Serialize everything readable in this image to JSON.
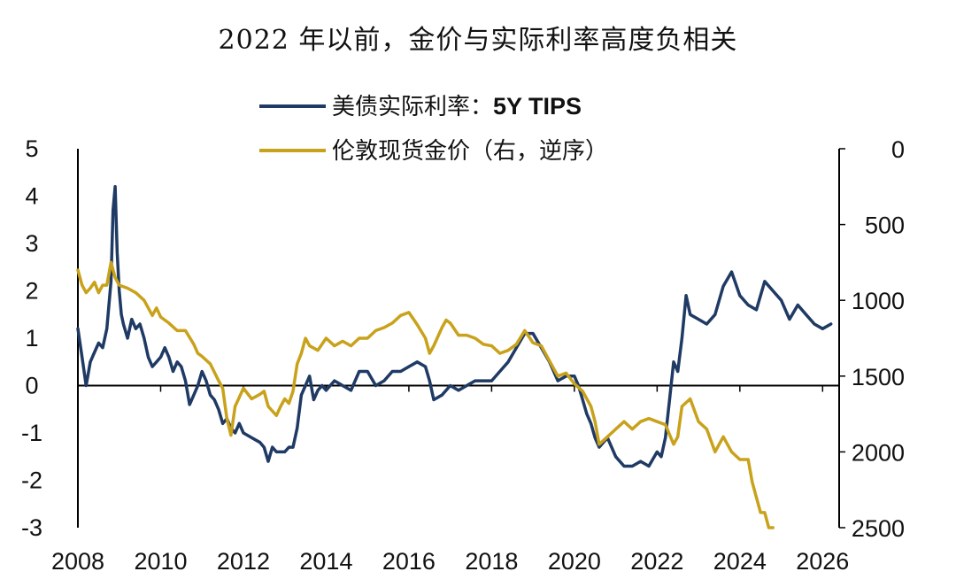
{
  "chart_data": {
    "type": "line",
    "title": "2022 年以前，金价与实际利率高度负相关",
    "colors": {
      "tips": "#1f3a64",
      "gold": "#c9a21b",
      "axis": "#000000"
    },
    "legend": {
      "placement": "top-center",
      "entries": [
        {
          "key": "tips",
          "label": "美债实际利率：",
          "label_bold": "5Y TIPS"
        },
        {
          "key": "gold",
          "label": "伦敦现货金价（右，逆序）"
        }
      ]
    },
    "x_axis": {
      "range": [
        2008,
        2026.4
      ],
      "ticks": [
        "2008",
        "2010",
        "2012",
        "2014",
        "2016",
        "2018",
        "2020",
        "2022",
        "2024",
        "2026"
      ]
    },
    "y_left": {
      "range": [
        -3,
        5
      ],
      "ticks": [
        "5",
        "4",
        "3",
        "2",
        "1",
        "0",
        "-1",
        "-2",
        "-3"
      ]
    },
    "y_right": {
      "range": [
        0,
        2500
      ],
      "inverted": true,
      "ticks": [
        "0",
        "500",
        "1000",
        "1500",
        "2000",
        "2500"
      ]
    },
    "series": [
      {
        "name": "美债实际利率：5Y TIPS",
        "axis": "left",
        "x": [
          2008.0,
          2008.1,
          2008.2,
          2008.3,
          2008.4,
          2008.5,
          2008.6,
          2008.7,
          2008.8,
          2008.85,
          2008.9,
          2008.95,
          2009.0,
          2009.05,
          2009.1,
          2009.2,
          2009.3,
          2009.4,
          2009.5,
          2009.6,
          2009.7,
          2009.8,
          2009.9,
          2010.0,
          2010.1,
          2010.2,
          2010.3,
          2010.4,
          2010.5,
          2010.6,
          2010.7,
          2010.8,
          2010.9,
          2011.0,
          2011.1,
          2011.2,
          2011.3,
          2011.4,
          2011.5,
          2011.6,
          2011.7,
          2011.8,
          2011.9,
          2012.0,
          2012.2,
          2012.4,
          2012.5,
          2012.6,
          2012.7,
          2012.8,
          2012.9,
          2013.0,
          2013.1,
          2013.2,
          2013.3,
          2013.4,
          2013.5,
          2013.6,
          2013.7,
          2013.8,
          2013.9,
          2014.0,
          2014.2,
          2014.4,
          2014.6,
          2014.8,
          2015.0,
          2015.2,
          2015.4,
          2015.6,
          2015.8,
          2016.0,
          2016.2,
          2016.4,
          2016.5,
          2016.6,
          2016.8,
          2017.0,
          2017.2,
          2017.4,
          2017.6,
          2017.8,
          2018.0,
          2018.2,
          2018.4,
          2018.6,
          2018.8,
          2019.0,
          2019.2,
          2019.4,
          2019.6,
          2019.8,
          2020.0,
          2020.1,
          2020.2,
          2020.3,
          2020.4,
          2020.5,
          2020.6,
          2020.8,
          2021.0,
          2021.2,
          2021.4,
          2021.6,
          2021.8,
          2022.0,
          2022.1,
          2022.2,
          2022.3,
          2022.4,
          2022.5,
          2022.6,
          2022.7,
          2022.8,
          2023.0,
          2023.2,
          2023.4,
          2023.6,
          2023.8,
          2024.0,
          2024.2,
          2024.4,
          2024.6,
          2024.8,
          2025.0,
          2025.2,
          2025.4,
          2025.6,
          2025.8,
          2026.0,
          2026.2
        ],
        "values": [
          1.2,
          0.6,
          0.0,
          0.5,
          0.7,
          0.9,
          0.8,
          1.2,
          2.2,
          3.7,
          4.2,
          2.8,
          2.0,
          1.5,
          1.3,
          1.0,
          1.4,
          1.2,
          1.3,
          1.0,
          0.6,
          0.4,
          0.5,
          0.6,
          0.8,
          0.6,
          0.3,
          0.5,
          0.4,
          0.1,
          -0.4,
          -0.2,
          0.0,
          0.3,
          0.1,
          -0.2,
          -0.3,
          -0.5,
          -0.8,
          -0.7,
          -0.9,
          -1.0,
          -0.8,
          -1.0,
          -1.1,
          -1.2,
          -1.3,
          -1.6,
          -1.3,
          -1.4,
          -1.4,
          -1.4,
          -1.3,
          -1.3,
          -0.9,
          -0.2,
          0.0,
          0.2,
          -0.3,
          -0.1,
          0.0,
          -0.1,
          0.1,
          0.0,
          -0.1,
          0.3,
          0.3,
          0.0,
          0.1,
          0.3,
          0.3,
          0.4,
          0.5,
          0.4,
          0.1,
          -0.3,
          -0.2,
          0.0,
          -0.1,
          0.0,
          0.1,
          0.1,
          0.1,
          0.3,
          0.5,
          0.8,
          1.1,
          1.1,
          0.8,
          0.5,
          0.1,
          0.2,
          0.2,
          0.0,
          -0.3,
          -0.6,
          -0.8,
          -1.1,
          -1.3,
          -1.1,
          -1.5,
          -1.7,
          -1.7,
          -1.6,
          -1.7,
          -1.4,
          -1.5,
          -1.1,
          -0.3,
          0.5,
          0.3,
          1.0,
          1.9,
          1.5,
          1.4,
          1.3,
          1.5,
          2.1,
          2.4,
          1.9,
          1.7,
          1.6,
          2.2,
          2.0,
          1.8,
          1.4,
          1.7,
          1.5,
          1.3,
          1.2,
          1.3
        ]
      },
      {
        "name": "伦敦现货金价（右，逆序）",
        "axis": "right",
        "x": [
          2008.0,
          2008.1,
          2008.2,
          2008.3,
          2008.4,
          2008.5,
          2008.6,
          2008.7,
          2008.8,
          2008.9,
          2009.0,
          2009.2,
          2009.4,
          2009.6,
          2009.8,
          2009.9,
          2010.0,
          2010.2,
          2010.4,
          2010.6,
          2010.8,
          2010.9,
          2011.0,
          2011.2,
          2011.4,
          2011.5,
          2011.6,
          2011.7,
          2011.8,
          2011.9,
          2012.0,
          2012.2,
          2012.4,
          2012.5,
          2012.6,
          2012.8,
          2012.9,
          2013.0,
          2013.1,
          2013.2,
          2013.3,
          2013.4,
          2013.5,
          2013.6,
          2013.8,
          2014.0,
          2014.2,
          2014.4,
          2014.6,
          2014.8,
          2015.0,
          2015.2,
          2015.4,
          2015.6,
          2015.8,
          2016.0,
          2016.2,
          2016.4,
          2016.5,
          2016.6,
          2016.8,
          2016.9,
          2017.0,
          2017.2,
          2017.4,
          2017.6,
          2017.8,
          2018.0,
          2018.2,
          2018.4,
          2018.6,
          2018.8,
          2019.0,
          2019.2,
          2019.4,
          2019.6,
          2019.8,
          2020.0,
          2020.2,
          2020.4,
          2020.5,
          2020.6,
          2020.8,
          2021.0,
          2021.2,
          2021.4,
          2021.6,
          2021.8,
          2022.0,
          2022.2,
          2022.4,
          2022.5,
          2022.6,
          2022.8,
          2023.0,
          2023.2,
          2023.4,
          2023.6,
          2023.8,
          2024.0,
          2024.2,
          2024.3,
          2024.4,
          2024.5,
          2024.6,
          2024.7,
          2024.8
        ],
        "values": [
          800,
          900,
          950,
          920,
          880,
          950,
          900,
          900,
          750,
          850,
          900,
          920,
          950,
          1000,
          1100,
          1050,
          1110,
          1150,
          1200,
          1200,
          1290,
          1350,
          1370,
          1420,
          1530,
          1580,
          1780,
          1890,
          1700,
          1640,
          1580,
          1650,
          1620,
          1600,
          1700,
          1760,
          1700,
          1650,
          1680,
          1600,
          1420,
          1350,
          1250,
          1300,
          1330,
          1250,
          1300,
          1270,
          1300,
          1250,
          1250,
          1200,
          1180,
          1150,
          1100,
          1080,
          1160,
          1250,
          1350,
          1300,
          1180,
          1130,
          1150,
          1230,
          1230,
          1250,
          1290,
          1300,
          1350,
          1330,
          1290,
          1200,
          1280,
          1300,
          1400,
          1500,
          1480,
          1550,
          1600,
          1700,
          1800,
          1950,
          1900,
          1850,
          1800,
          1850,
          1800,
          1780,
          1800,
          1820,
          1950,
          1900,
          1700,
          1650,
          1800,
          1850,
          2000,
          1900,
          2000,
          2050,
          2050,
          2200,
          2300,
          2400,
          2400,
          2500,
          2600
        ]
      }
    ]
  }
}
